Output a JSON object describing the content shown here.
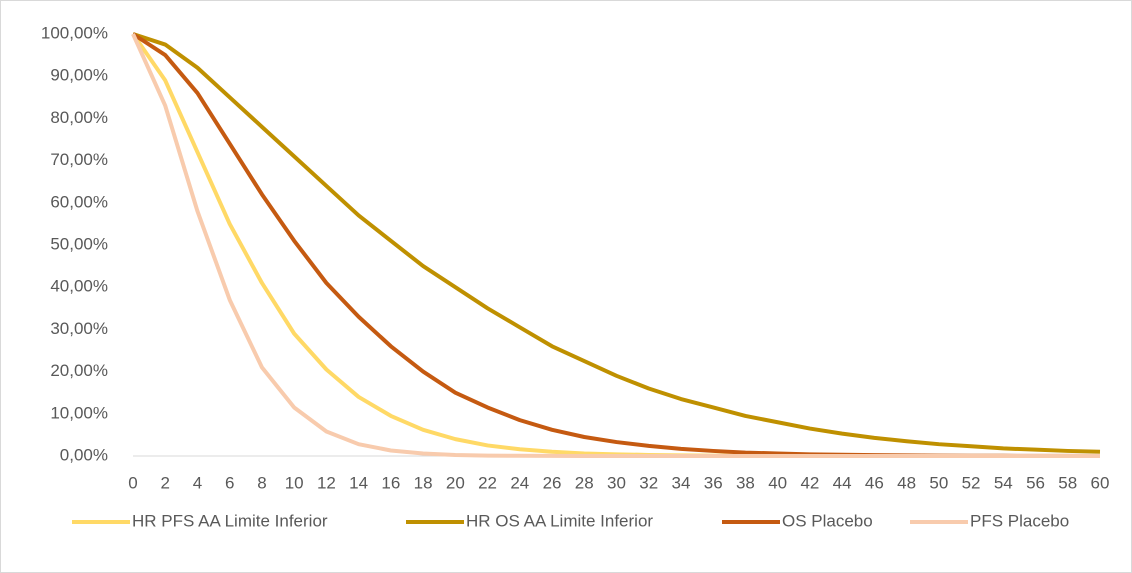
{
  "chart_data": {
    "type": "line",
    "x": [
      0,
      2,
      4,
      6,
      8,
      10,
      12,
      14,
      16,
      18,
      20,
      22,
      24,
      26,
      28,
      30,
      32,
      34,
      36,
      38,
      40,
      42,
      44,
      46,
      48,
      50,
      52,
      54,
      56,
      58,
      60
    ],
    "xlim": [
      0,
      60
    ],
    "xticks": [
      0,
      2,
      4,
      6,
      8,
      10,
      12,
      14,
      16,
      18,
      20,
      22,
      24,
      26,
      28,
      30,
      32,
      34,
      36,
      38,
      40,
      42,
      44,
      46,
      48,
      50,
      52,
      54,
      56,
      58,
      60
    ],
    "ylim": [
      0,
      100
    ],
    "yticks": [
      {
        "value": 0,
        "label": "0,00%"
      },
      {
        "value": 10,
        "label": "10,00%"
      },
      {
        "value": 20,
        "label": "20,00%"
      },
      {
        "value": 30,
        "label": "30,00%"
      },
      {
        "value": 40,
        "label": "40,00%"
      },
      {
        "value": 50,
        "label": "50,00%"
      },
      {
        "value": 60,
        "label": "60,00%"
      },
      {
        "value": 70,
        "label": "70,00%"
      },
      {
        "value": 80,
        "label": "80,00%"
      },
      {
        "value": 90,
        "label": "90,00%"
      },
      {
        "value": 100,
        "label": "100,00%"
      }
    ],
    "grid": false,
    "legend": "bottom",
    "series": [
      {
        "name": "HR PFS AA Limite Inferior",
        "color": "#ffd966",
        "values": [
          100,
          89,
          72,
          55,
          41,
          29,
          20.5,
          14,
          9.5,
          6.2,
          4,
          2.5,
          1.6,
          1,
          0.6,
          0.4,
          0.25,
          0.15,
          0.1,
          0.05,
          0.03,
          0.02,
          0.01,
          0,
          0,
          0,
          0,
          0,
          0,
          0,
          0
        ]
      },
      {
        "name": "HR OS AA Limite Inferior",
        "color": "#bf9000",
        "values": [
          100,
          97.5,
          92,
          85,
          78,
          71,
          64,
          57,
          51,
          45,
          40,
          35,
          30.5,
          26,
          22.5,
          19,
          16,
          13.5,
          11.5,
          9.5,
          8,
          6.5,
          5.3,
          4.3,
          3.5,
          2.8,
          2.3,
          1.8,
          1.5,
          1.2,
          1
        ]
      },
      {
        "name": "OS Placebo",
        "color": "#c55a11",
        "values": [
          100,
          95,
          86,
          74,
          62,
          51,
          41,
          33,
          26,
          20,
          15,
          11.5,
          8.5,
          6.2,
          4.5,
          3.3,
          2.4,
          1.7,
          1.2,
          0.8,
          0.6,
          0.4,
          0.3,
          0.2,
          0.15,
          0.1,
          0.05,
          0.05,
          0.03,
          0.02,
          0.01
        ]
      },
      {
        "name": "PFS Placebo",
        "color": "#f8cbad",
        "values": [
          100,
          83,
          58,
          37,
          21,
          11.5,
          5.8,
          2.8,
          1.3,
          0.6,
          0.25,
          0.1,
          0.05,
          0.02,
          0.01,
          0,
          0,
          0,
          0,
          0,
          0,
          0,
          0,
          0,
          0,
          0,
          0,
          0,
          0,
          0,
          0
        ]
      }
    ]
  }
}
